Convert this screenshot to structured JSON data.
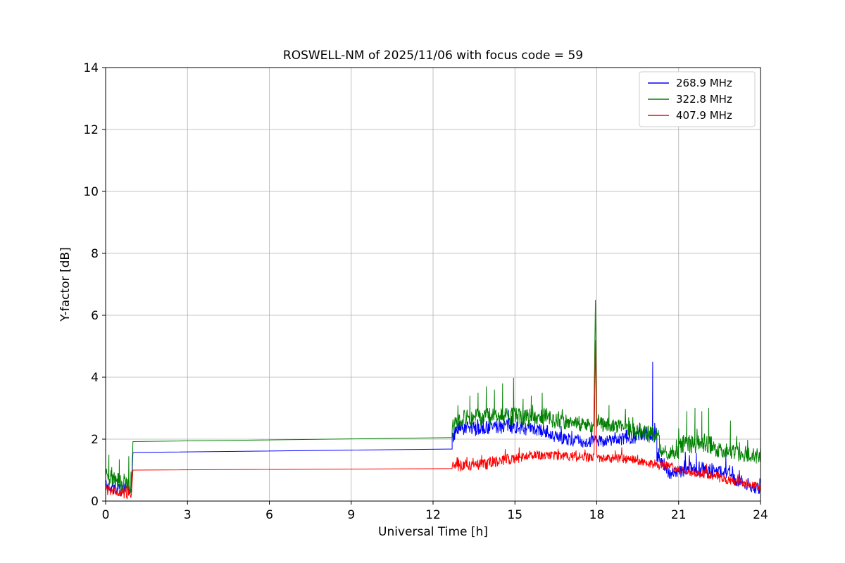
{
  "chart_data": {
    "type": "line",
    "title": "ROSWELL-NM of 2025/11/06 with focus code = 59",
    "xlabel": "Universal Time [h]",
    "ylabel": "Y-factor [dB]",
    "xlim": [
      0,
      24
    ],
    "ylim": [
      0,
      14
    ],
    "xticks": [
      0,
      3,
      6,
      9,
      12,
      15,
      18,
      21,
      24
    ],
    "yticks": [
      0,
      2,
      4,
      6,
      8,
      10,
      12,
      14
    ],
    "grid": true,
    "grid_color": "#b0b0b0",
    "legend_position": "upper right",
    "series": [
      {
        "name": "268.9 MHz",
        "color": "#0000ff",
        "segments": [
          {
            "x": [
              0,
              0.95
            ],
            "y": [
              0.5,
              0.25
            ],
            "noise": 0.2
          },
          {
            "x": [
              1.0,
              12.7
            ],
            "y": [
              1.57,
              1.68
            ],
            "noise": 0
          },
          {
            "x": [
              12.7,
              13.0
            ],
            "y": [
              2.2,
              2.35
            ],
            "noise": 0.3
          },
          {
            "x": [
              13.0,
              14.8
            ],
            "y": [
              2.3,
              2.45
            ],
            "noise": 0.25
          },
          {
            "x": [
              14.8,
              16.2
            ],
            "y": [
              2.4,
              2.25
            ],
            "noise": 0.22
          },
          {
            "x": [
              16.2,
              17.6
            ],
            "y": [
              2.1,
              1.9
            ],
            "noise": 0.2
          },
          {
            "x": [
              17.6,
              19.0
            ],
            "y": [
              1.9,
              2.0
            ],
            "noise": 0.2
          },
          {
            "x": [
              19.0,
              20.2
            ],
            "y": [
              2.05,
              2.2
            ],
            "noise": 0.25
          },
          {
            "x": [
              20.2,
              20.6
            ],
            "y": [
              1.5,
              1.0
            ],
            "noise": 0.25
          },
          {
            "x": [
              20.6,
              21.2
            ],
            "y": [
              0.9,
              0.95
            ],
            "noise": 0.2
          },
          {
            "x": [
              21.2,
              23.0
            ],
            "y": [
              1.1,
              0.9
            ],
            "noise": 0.25
          },
          {
            "x": [
              23.0,
              24.0
            ],
            "y": [
              0.7,
              0.35
            ],
            "noise": 0.18
          }
        ],
        "spikes": [
          [
            20.05,
            4.5
          ]
        ]
      },
      {
        "name": "322.8 MHz",
        "color": "#008000",
        "segments": [
          {
            "x": [
              0,
              0.95
            ],
            "y": [
              0.8,
              0.5
            ],
            "noise": 0.3
          },
          {
            "x": [
              1.0,
              12.7
            ],
            "y": [
              1.92,
              2.05
            ],
            "noise": 0
          },
          {
            "x": [
              12.7,
              13.1
            ],
            "y": [
              2.55,
              2.7
            ],
            "noise": 0.3
          },
          {
            "x": [
              13.1,
              16.3
            ],
            "y": [
              2.7,
              2.75
            ],
            "noise": 0.3
          },
          {
            "x": [
              16.3,
              17.9
            ],
            "y": [
              2.6,
              2.45
            ],
            "noise": 0.25
          },
          {
            "x": [
              18.0,
              19.2
            ],
            "y": [
              2.5,
              2.35
            ],
            "noise": 0.25
          },
          {
            "x": [
              19.2,
              20.3
            ],
            "y": [
              2.3,
              2.1
            ],
            "noise": 0.3
          },
          {
            "x": [
              20.3,
              21.0
            ],
            "y": [
              1.6,
              1.55
            ],
            "noise": 0.25
          },
          {
            "x": [
              21.0,
              22.3
            ],
            "y": [
              1.85,
              1.8
            ],
            "noise": 0.3
          },
          {
            "x": [
              22.3,
              23.2
            ],
            "y": [
              1.65,
              1.6
            ],
            "noise": 0.25
          },
          {
            "x": [
              23.2,
              24.0
            ],
            "y": [
              1.5,
              1.45
            ],
            "noise": 0.25
          }
        ],
        "spikes": [
          [
            0.12,
            1.5
          ],
          [
            0.5,
            1.35
          ],
          [
            0.85,
            1.45
          ],
          [
            13.35,
            3.4
          ],
          [
            13.65,
            3.5
          ],
          [
            13.95,
            3.7
          ],
          [
            14.25,
            3.6
          ],
          [
            14.55,
            3.8
          ],
          [
            14.95,
            3.98
          ],
          [
            15.3,
            3.3
          ],
          [
            15.6,
            3.4
          ],
          [
            16.0,
            3.5
          ],
          [
            17.95,
            6.5
          ],
          [
            18.45,
            3.1
          ],
          [
            21.3,
            2.9
          ],
          [
            21.6,
            3.0
          ],
          [
            21.85,
            2.9
          ],
          [
            22.1,
            3.0
          ],
          [
            22.9,
            2.6
          ]
        ]
      },
      {
        "name": "407.9 MHz",
        "color": "#ff0000",
        "segments": [
          {
            "x": [
              0,
              0.95
            ],
            "y": [
              0.35,
              0.2
            ],
            "noise": 0.17
          },
          {
            "x": [
              1.0,
              12.7
            ],
            "y": [
              1.0,
              1.05
            ],
            "noise": 0
          },
          {
            "x": [
              12.7,
              14.0
            ],
            "y": [
              1.12,
              1.2
            ],
            "noise": 0.18
          },
          {
            "x": [
              14.0,
              15.5
            ],
            "y": [
              1.25,
              1.45
            ],
            "noise": 0.18
          },
          {
            "x": [
              15.5,
              17.0
            ],
            "y": [
              1.5,
              1.45
            ],
            "noise": 0.15
          },
          {
            "x": [
              17.0,
              17.9
            ],
            "y": [
              1.45,
              1.4
            ],
            "noise": 0.15
          },
          {
            "x": [
              18.0,
              19.5
            ],
            "y": [
              1.4,
              1.35
            ],
            "noise": 0.15
          },
          {
            "x": [
              19.5,
              21.0
            ],
            "y": [
              1.3,
              1.05
            ],
            "noise": 0.15
          },
          {
            "x": [
              21.0,
              22.5
            ],
            "y": [
              1.0,
              0.8
            ],
            "noise": 0.15
          },
          {
            "x": [
              22.5,
              24.0
            ],
            "y": [
              0.75,
              0.45
            ],
            "noise": 0.15
          }
        ],
        "spikes": [
          [
            17.95,
            5.2
          ]
        ]
      }
    ]
  }
}
